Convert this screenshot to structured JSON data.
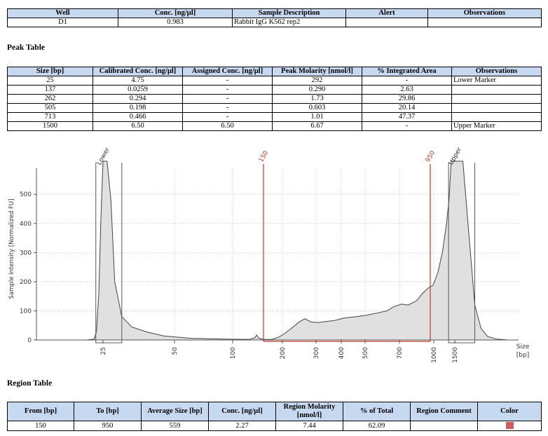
{
  "well_table": {
    "headers": [
      "Well",
      "Conc. [ng/µl]",
      "Sample Description",
      "Alert",
      "Observations"
    ],
    "row": [
      "D1",
      "0.983",
      "Rabbit IgG K562 rep2",
      "",
      ""
    ]
  },
  "peak_table": {
    "title": "Peak Table",
    "headers": [
      "Size [bp]",
      "Calibrated Conc. [ng/µl]",
      "Assigned Conc. [ng/µl]",
      "Peak Molarity [nmol/l]",
      "% Integrated Area",
      "Observations"
    ],
    "rows": [
      [
        "25",
        "4.75",
        "-",
        "292",
        "-",
        "Lower Marker"
      ],
      [
        "137",
        "0.0259",
        "-",
        "0.290",
        "2.63",
        ""
      ],
      [
        "262",
        "0.294",
        "-",
        "1.73",
        "29.86",
        ""
      ],
      [
        "505",
        "0.198",
        "-",
        "0.603",
        "20.14",
        ""
      ],
      [
        "713",
        "0.466",
        "-",
        "1.01",
        "47.37",
        ""
      ],
      [
        "1500",
        "6.50",
        "6.50",
        "6.67",
        "-",
        "Upper Marker"
      ]
    ]
  },
  "region_table": {
    "title": "Region Table",
    "headers": [
      "From [bp]",
      "To [bp]",
      "Average Size [bp]",
      "Conc. [ng/µl]",
      "Region Molarity [nmol/l]",
      "% of Total",
      "Region Comment",
      "Color"
    ],
    "row": [
      "150",
      "950",
      "559",
      "2.27",
      "7.44",
      "62.09",
      ""
    ],
    "color": "#cd5c5c"
  },
  "chart_data": {
    "type": "area",
    "ylabel": "Sample Intensity [Normalized FU]",
    "xlabel": "Size [bp]",
    "ylim": [
      0,
      580
    ],
    "y_ticks": [
      0,
      100,
      200,
      300,
      400,
      500
    ],
    "x_ticks": [
      "25",
      "50",
      "100",
      "200",
      "300",
      "400",
      "500",
      "700",
      "1000",
      "1500"
    ],
    "x_scale": "sizing ladder (non-linear)",
    "grid": true,
    "fill_color": "#e0e0e0",
    "line_color": "#444444",
    "marker_labels": [
      "Lower",
      "Upper"
    ],
    "region": {
      "from_label": "150",
      "to_label": "950",
      "from": 150,
      "to": 950,
      "color": "#c0392b"
    },
    "trace": [
      {
        "x": 18,
        "y": 0
      },
      {
        "x": 21,
        "y": 3
      },
      {
        "x": 22,
        "y": 30
      },
      {
        "x": 23,
        "y": 160
      },
      {
        "x": 24,
        "y": 420
      },
      {
        "x": 25,
        "y": 900
      },
      {
        "x": 26,
        "y": 900
      },
      {
        "x": 27,
        "y": 480
      },
      {
        "x": 28,
        "y": 200
      },
      {
        "x": 30,
        "y": 80
      },
      {
        "x": 33,
        "y": 45
      },
      {
        "x": 38,
        "y": 28
      },
      {
        "x": 45,
        "y": 14
      },
      {
        "x": 60,
        "y": 6
      },
      {
        "x": 90,
        "y": 3
      },
      {
        "x": 125,
        "y": 2
      },
      {
        "x": 134,
        "y": 8
      },
      {
        "x": 137,
        "y": 17
      },
      {
        "x": 141,
        "y": 6
      },
      {
        "x": 150,
        "y": 2
      },
      {
        "x": 170,
        "y": 2
      },
      {
        "x": 190,
        "y": 10
      },
      {
        "x": 205,
        "y": 22
      },
      {
        "x": 225,
        "y": 42
      },
      {
        "x": 245,
        "y": 62
      },
      {
        "x": 262,
        "y": 73
      },
      {
        "x": 282,
        "y": 62
      },
      {
        "x": 305,
        "y": 60
      },
      {
        "x": 335,
        "y": 63
      },
      {
        "x": 370,
        "y": 67
      },
      {
        "x": 410,
        "y": 75
      },
      {
        "x": 460,
        "y": 80
      },
      {
        "x": 505,
        "y": 85
      },
      {
        "x": 560,
        "y": 92
      },
      {
        "x": 620,
        "y": 100
      },
      {
        "x": 665,
        "y": 115
      },
      {
        "x": 713,
        "y": 123
      },
      {
        "x": 765,
        "y": 120
      },
      {
        "x": 830,
        "y": 135
      },
      {
        "x": 880,
        "y": 160
      },
      {
        "x": 930,
        "y": 178
      },
      {
        "x": 990,
        "y": 188
      },
      {
        "x": 1080,
        "y": 230
      },
      {
        "x": 1180,
        "y": 300
      },
      {
        "x": 1270,
        "y": 390
      },
      {
        "x": 1340,
        "y": 480
      },
      {
        "x": 1400,
        "y": 900
      },
      {
        "x": 1600,
        "y": 900
      },
      {
        "x": 1680,
        "y": 360
      },
      {
        "x": 1760,
        "y": 120
      },
      {
        "x": 1850,
        "y": 40
      },
      {
        "x": 1950,
        "y": 12
      },
      {
        "x": 2100,
        "y": 3
      },
      {
        "x": 2300,
        "y": 0
      }
    ]
  }
}
